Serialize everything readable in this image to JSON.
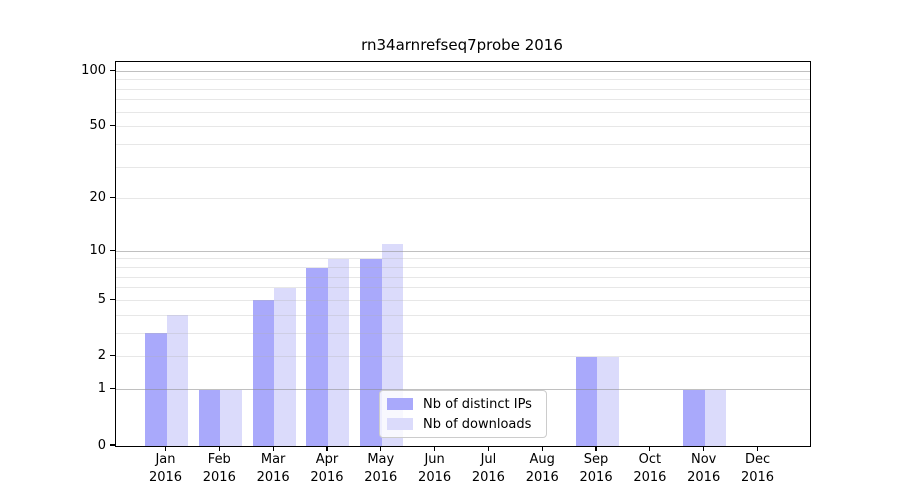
{
  "chart_data": {
    "type": "bar",
    "title": "rn34arnrefseq7probe 2016",
    "categories": [
      "Jan 2016",
      "Feb 2016",
      "Mar 2016",
      "Apr 2016",
      "May 2016",
      "Jun 2016",
      "Jul 2016",
      "Aug 2016",
      "Sep 2016",
      "Oct 2016",
      "Nov 2016",
      "Dec 2016"
    ],
    "series": [
      {
        "name": "Nb of distinct IPs",
        "color": "#a9a9fb",
        "values": [
          3,
          1,
          5,
          8,
          9,
          0,
          0,
          0,
          2,
          0,
          1,
          0
        ]
      },
      {
        "name": "Nb of downloads",
        "color": "#dbdbfb",
        "values": [
          4,
          1,
          6,
          9,
          11,
          0,
          0,
          0,
          2,
          0,
          1,
          0
        ]
      }
    ],
    "y_axis": {
      "ticks": [
        0,
        1,
        2,
        5,
        10,
        20,
        50,
        100
      ],
      "scale": "log1p",
      "max": 112,
      "major_gridlines": [
        1,
        10,
        100
      ],
      "minor_gridlines": [
        2,
        3,
        4,
        5,
        6,
        7,
        8,
        9,
        20,
        30,
        40,
        50,
        60,
        70,
        80,
        90
      ]
    },
    "xlabel": "",
    "ylabel": "",
    "grid": "on",
    "legend_position": "lower center"
  },
  "colors": {
    "bar_dark": "#a9a9fb",
    "bar_light": "#dbdbfb",
    "major_grid": "#8c8c8c",
    "minor_grid": "#afafaf",
    "axis": "#000000",
    "legend_border": "#cccccc"
  }
}
